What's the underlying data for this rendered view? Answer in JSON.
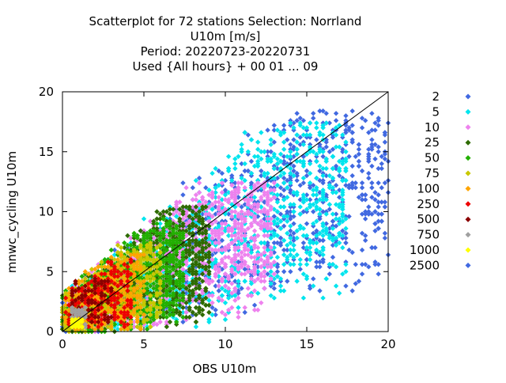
{
  "chart_data": {
    "type": "scatter",
    "title_lines": [
      "Scatterplot for   72 stations Selection: Norrland",
      "U10m [m/s]",
      "Period: 20220723-20220731",
      "Used {All hours} + 00 01 ... 09"
    ],
    "xlabel": "OBS U10m",
    "ylabel": "mnwc_cycling U10m",
    "xlim": [
      0,
      20
    ],
    "ylim": [
      0,
      20
    ],
    "xticks": [
      0,
      5,
      10,
      15,
      20
    ],
    "yticks": [
      0,
      5,
      10,
      15,
      20
    ],
    "grid": false,
    "reference_line": {
      "from": [
        0,
        0
      ],
      "to": [
        20,
        20
      ]
    },
    "legend_position": "right",
    "legend": [
      {
        "label": "2",
        "color": "#4169e1"
      },
      {
        "label": "5",
        "color": "#00e5ee"
      },
      {
        "label": "10",
        "color": "#ee82ee"
      },
      {
        "label": "25",
        "color": "#2e6b00"
      },
      {
        "label": "50",
        "color": "#22b000"
      },
      {
        "label": "75",
        "color": "#c8c800"
      },
      {
        "label": "100",
        "color": "#ffa500"
      },
      {
        "label": "250",
        "color": "#ee0000"
      },
      {
        "label": "500",
        "color": "#8b0000"
      },
      {
        "label": "750",
        "color": "#a0a0a0"
      },
      {
        "label": "1000",
        "color": "#ffff00"
      },
      {
        "label": "2500",
        "color": "#4169e1"
      }
    ],
    "density_regions": [
      {
        "class": "2",
        "x": [
          0,
          20
        ],
        "y": [
          0,
          18.5
        ]
      },
      {
        "class": "5",
        "x": [
          0,
          17.5
        ],
        "y": [
          0,
          17.5
        ]
      },
      {
        "class": "10",
        "x": [
          0,
          13
        ],
        "y": [
          0,
          12.5
        ]
      },
      {
        "class": "25",
        "x": [
          0,
          9
        ],
        "y": [
          0,
          10.5
        ]
      },
      {
        "class": "50",
        "x": [
          0,
          7.5
        ],
        "y": [
          0,
          9.5
        ]
      },
      {
        "class": "75",
        "x": [
          0,
          6
        ],
        "y": [
          0,
          7.5
        ]
      },
      {
        "class": "100",
        "x": [
          0,
          5
        ],
        "y": [
          0,
          6.5
        ]
      },
      {
        "class": "250",
        "x": [
          0.2,
          4.2
        ],
        "y": [
          0.3,
          6
        ]
      },
      {
        "class": "500",
        "x": [
          0.5,
          3
        ],
        "y": [
          0.8,
          4.5
        ]
      },
      {
        "class": "750",
        "x": [
          0.5,
          1.5
        ],
        "y": [
          0.3,
          2
        ]
      },
      {
        "class": "1000",
        "x": [
          0.5,
          1.2
        ],
        "y": [
          0.3,
          1
        ]
      }
    ]
  }
}
